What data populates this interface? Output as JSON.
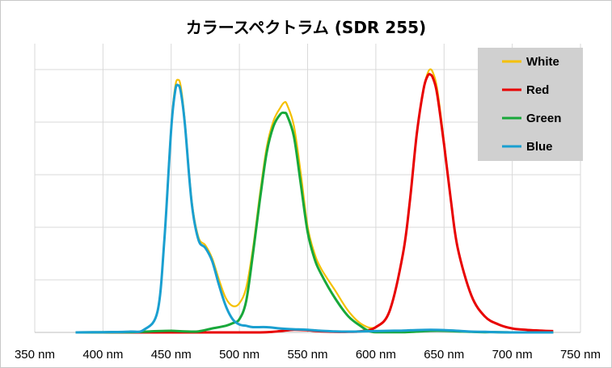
{
  "chart_data": {
    "type": "line",
    "title": "カラースペクトラム (SDR 255)",
    "xlabel": "",
    "ylabel": "",
    "xlim": [
      350,
      750
    ],
    "ylim": [
      0,
      1
    ],
    "x_unit": "nm",
    "x_ticks": [
      "350 nm",
      "400 nm",
      "450 nm",
      "500 nm",
      "550 nm",
      "600 nm",
      "650 nm",
      "700 nm",
      "750 nm"
    ],
    "grid": true,
    "legend_position": "top-right",
    "series": [
      {
        "name": "White",
        "color": "#f5c000",
        "x": [
          380,
          400,
          420,
          430,
          440,
          445,
          450,
          453,
          455,
          457,
          460,
          465,
          470,
          475,
          480,
          485,
          490,
          495,
          500,
          505,
          510,
          515,
          520,
          525,
          530,
          533,
          535,
          540,
          545,
          550,
          555,
          560,
          570,
          580,
          590,
          600,
          610,
          620,
          625,
          630,
          635,
          638,
          640,
          642,
          645,
          650,
          655,
          660,
          670,
          680,
          690,
          700,
          710,
          720,
          730
        ],
        "y": [
          0,
          0.001,
          0.003,
          0.01,
          0.08,
          0.35,
          0.78,
          0.93,
          0.955,
          0.93,
          0.8,
          0.5,
          0.36,
          0.33,
          0.28,
          0.2,
          0.13,
          0.1,
          0.11,
          0.17,
          0.32,
          0.52,
          0.7,
          0.8,
          0.85,
          0.87,
          0.86,
          0.78,
          0.6,
          0.4,
          0.3,
          0.24,
          0.16,
          0.08,
          0.03,
          0.02,
          0.08,
          0.3,
          0.5,
          0.75,
          0.92,
          0.98,
          0.995,
          0.98,
          0.92,
          0.72,
          0.5,
          0.32,
          0.14,
          0.06,
          0.03,
          0.015,
          0.01,
          0.007,
          0.005
        ]
      },
      {
        "name": "Red",
        "color": "#e80000",
        "x": [
          380,
          500,
          520,
          530,
          540,
          550,
          560,
          580,
          590,
          600,
          610,
          620,
          625,
          630,
          635,
          638,
          640,
          642,
          645,
          650,
          655,
          660,
          670,
          680,
          690,
          700,
          710,
          720,
          730
        ],
        "y": [
          0,
          0,
          0.001,
          0.005,
          0.01,
          0.008,
          0.004,
          0.002,
          0.005,
          0.02,
          0.08,
          0.3,
          0.5,
          0.75,
          0.92,
          0.97,
          0.975,
          0.96,
          0.9,
          0.71,
          0.5,
          0.32,
          0.14,
          0.06,
          0.03,
          0.015,
          0.01,
          0.007,
          0.005
        ]
      },
      {
        "name": "Green",
        "color": "#18a83a",
        "x": [
          380,
          420,
          440,
          450,
          460,
          470,
          480,
          490,
          495,
          500,
          505,
          510,
          515,
          520,
          525,
          530,
          533,
          535,
          540,
          545,
          550,
          555,
          560,
          570,
          580,
          590,
          595,
          600,
          610,
          620,
          630,
          640,
          650,
          660,
          670,
          680,
          690,
          700,
          710,
          720,
          730
        ],
        "y": [
          0,
          0.001,
          0.005,
          0.006,
          0.004,
          0.004,
          0.015,
          0.025,
          0.035,
          0.05,
          0.12,
          0.3,
          0.5,
          0.68,
          0.78,
          0.825,
          0.83,
          0.82,
          0.74,
          0.56,
          0.38,
          0.28,
          0.22,
          0.13,
          0.06,
          0.02,
          0.005,
          0.001,
          0.001,
          0.001,
          0.003,
          0.006,
          0.006,
          0.004,
          0.002,
          0.001,
          0.001,
          0,
          0,
          0,
          0
        ]
      },
      {
        "name": "Blue",
        "color": "#1a9fd0",
        "x": [
          380,
          400,
          420,
          430,
          440,
          445,
          450,
          453,
          455,
          457,
          460,
          465,
          470,
          475,
          480,
          485,
          490,
          495,
          500,
          505,
          510,
          520,
          530,
          540,
          550,
          560,
          570,
          580,
          590,
          600,
          610,
          620,
          630,
          640,
          650,
          660,
          670,
          680,
          690,
          700,
          710,
          720,
          730
        ],
        "y": [
          0,
          0.001,
          0.003,
          0.01,
          0.08,
          0.35,
          0.77,
          0.915,
          0.935,
          0.91,
          0.79,
          0.49,
          0.35,
          0.32,
          0.27,
          0.18,
          0.1,
          0.05,
          0.03,
          0.025,
          0.02,
          0.02,
          0.015,
          0.012,
          0.01,
          0.006,
          0.004,
          0.003,
          0.004,
          0.005,
          0.006,
          0.007,
          0.009,
          0.01,
          0.009,
          0.006,
          0.003,
          0.002,
          0.001,
          0,
          0,
          0,
          0
        ]
      }
    ]
  }
}
